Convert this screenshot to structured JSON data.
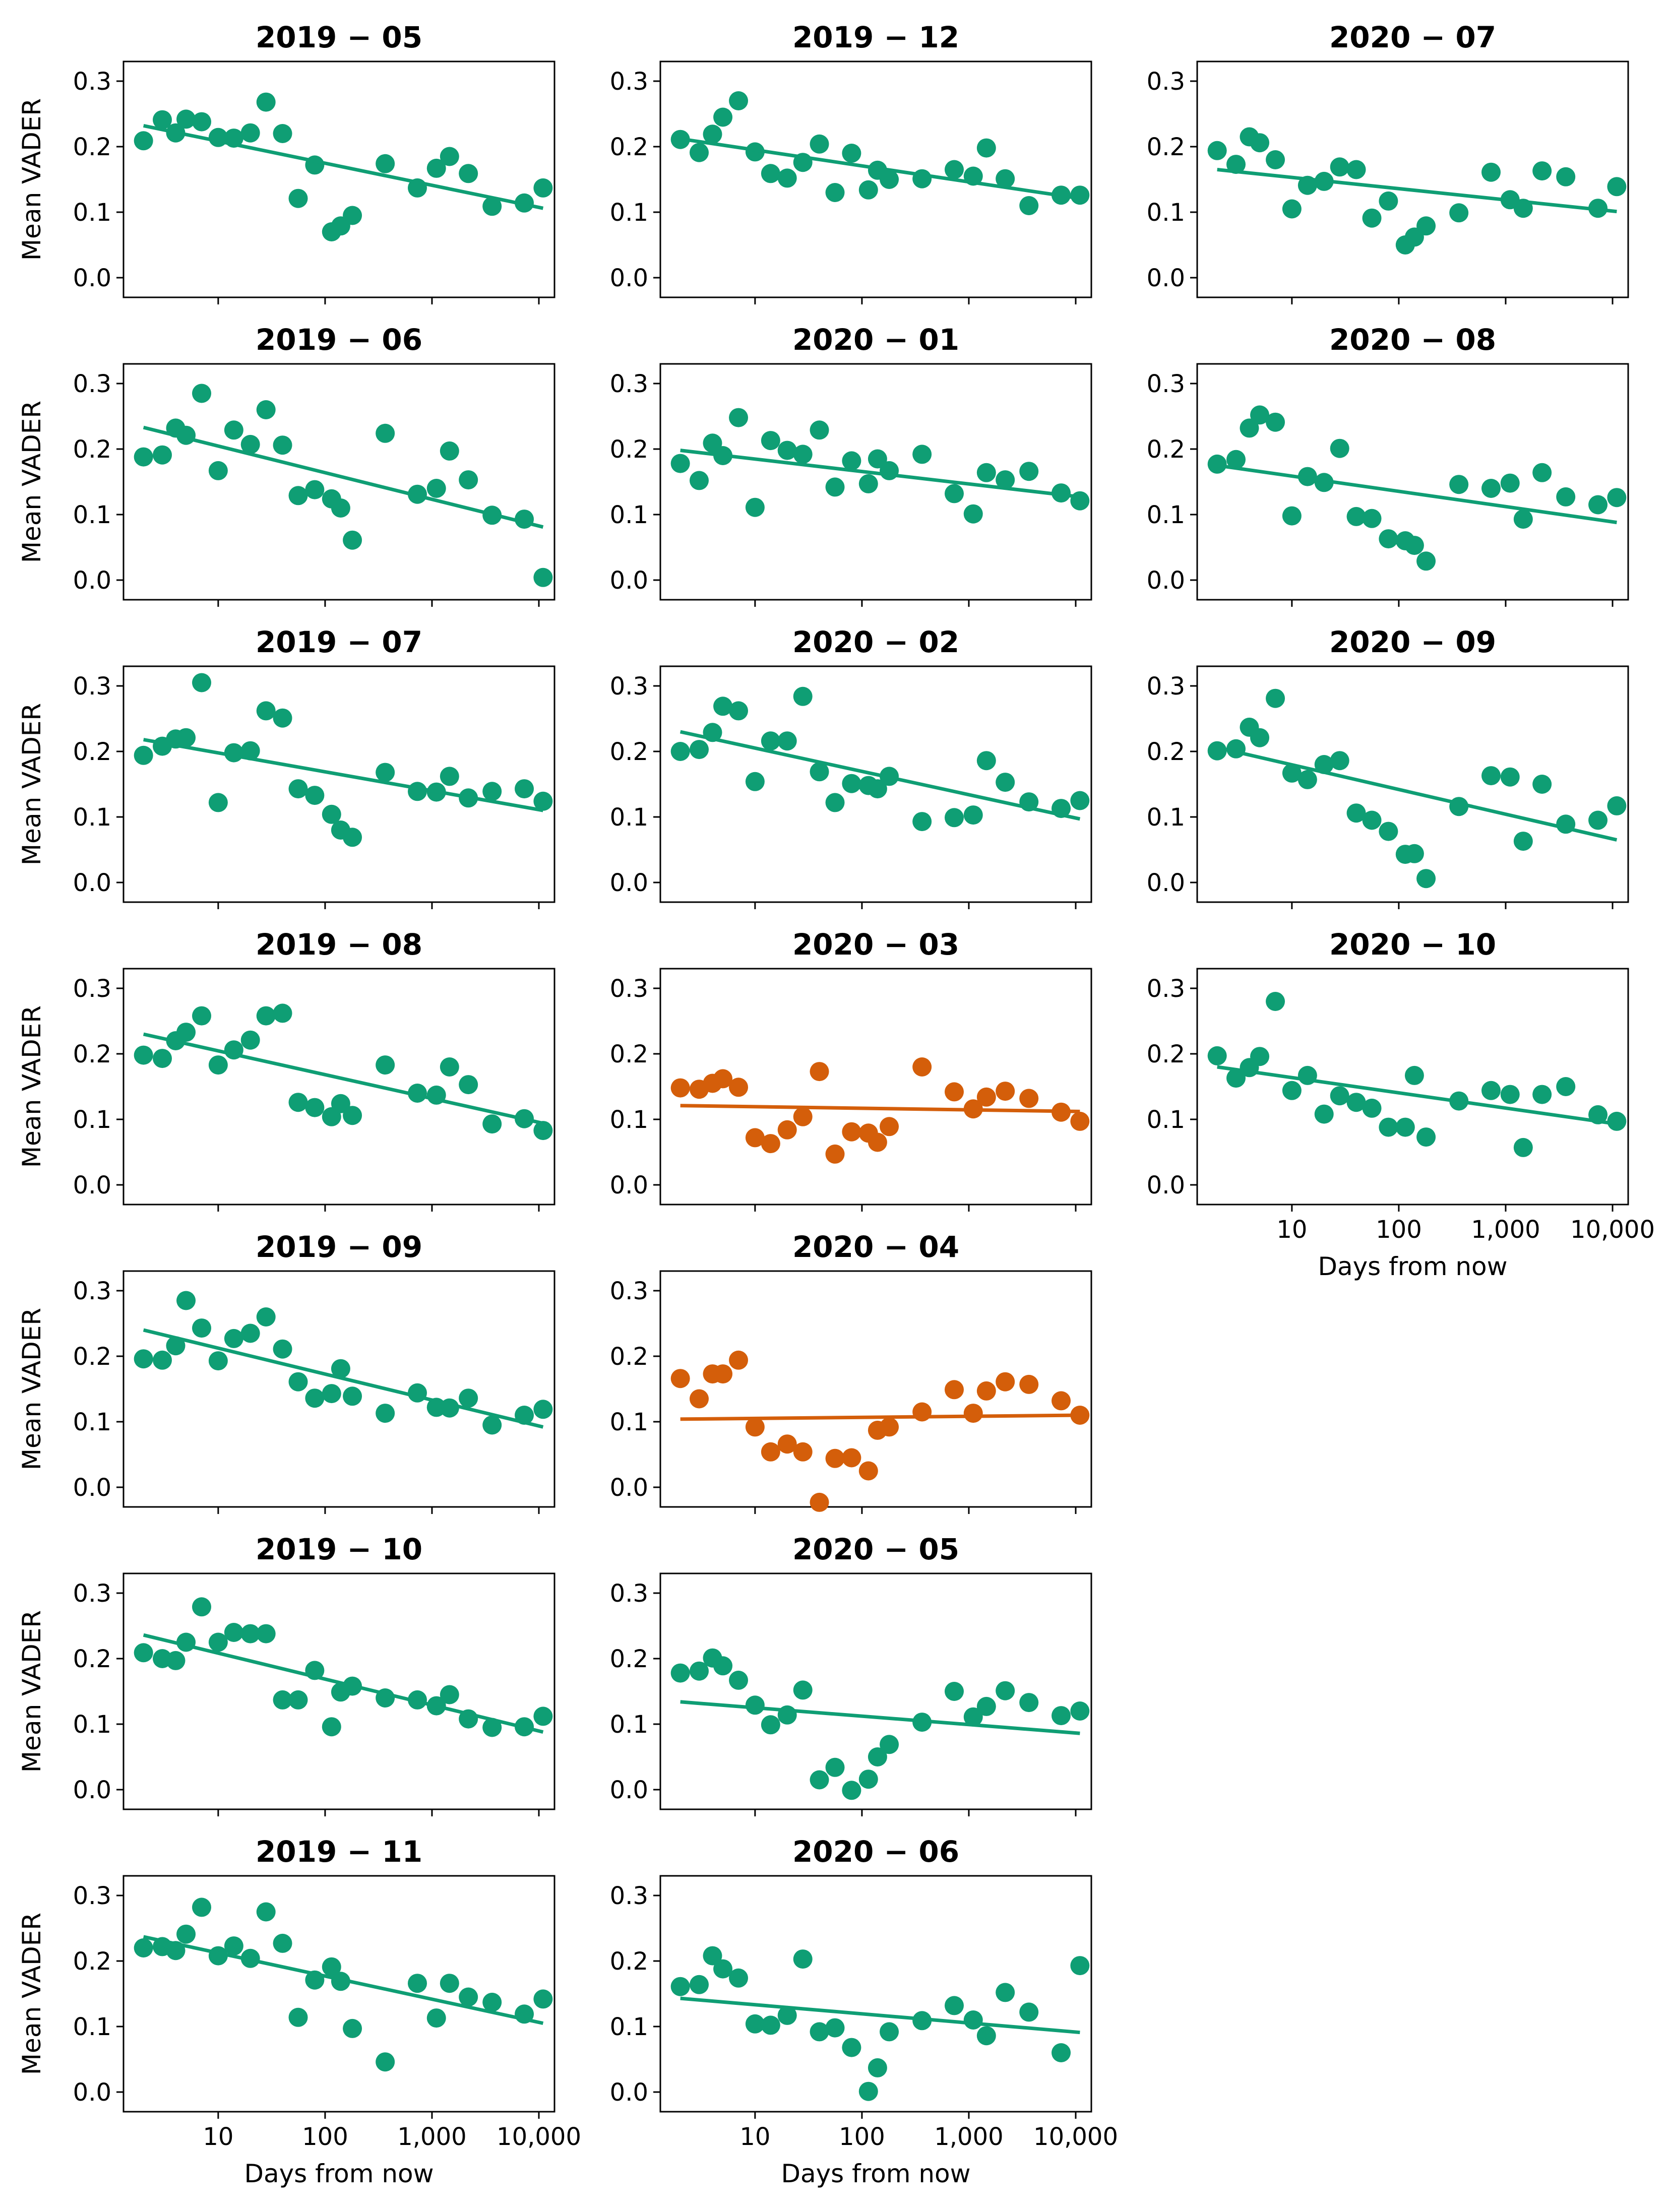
{
  "figure": {
    "ylabel": "Mean VADER",
    "xlabel": "Days from now",
    "yticks": [
      0.0,
      0.1,
      0.2,
      0.3
    ],
    "ytick_labels": [
      "0.0",
      "0.1",
      "0.2",
      "0.3"
    ],
    "xticks": [
      10,
      100,
      1000,
      10000
    ],
    "xtick_labels": [
      "10",
      "100",
      "1,000",
      "10,000"
    ],
    "colors": {
      "normal": "#0f9e74",
      "highlight": "#d45e0a"
    }
  },
  "chart_data": [
    {
      "type": "scatter",
      "title": "2019 − 05",
      "xscale": "log",
      "xlim": [
        1.3,
        14000
      ],
      "ylim": [
        -0.03,
        0.33
      ],
      "color": "#0f9e74",
      "x": [
        2,
        3,
        4,
        5,
        7,
        10,
        14,
        20,
        28,
        40,
        56,
        80,
        115,
        140,
        180,
        365,
        730,
        1100,
        1460,
        2190,
        3650,
        7300,
        10950
      ],
      "y": [
        0.209,
        0.241,
        0.221,
        0.242,
        0.238,
        0.214,
        0.213,
        0.221,
        0.268,
        0.22,
        0.121,
        0.172,
        0.07,
        0.079,
        0.095,
        0.174,
        0.137,
        0.167,
        0.185,
        0.159,
        0.109,
        0.114,
        0.137
      ],
      "fit": [
        [
          2,
          0.232
        ],
        [
          10950,
          0.106
        ]
      ]
    },
    {
      "type": "scatter",
      "title": "2019 − 06",
      "xscale": "log",
      "xlim": [
        1.3,
        14000
      ],
      "ylim": [
        -0.03,
        0.33
      ],
      "color": "#0f9e74",
      "x": [
        2,
        3,
        4,
        5,
        7,
        10,
        14,
        20,
        28,
        40,
        56,
        80,
        115,
        140,
        180,
        365,
        730,
        1100,
        1460,
        2190,
        3650,
        7300,
        10950
      ],
      "y": [
        0.188,
        0.191,
        0.232,
        0.221,
        0.285,
        0.167,
        0.229,
        0.207,
        0.26,
        0.206,
        0.129,
        0.138,
        0.124,
        0.11,
        0.061,
        0.224,
        0.131,
        0.14,
        0.197,
        0.153,
        0.099,
        0.093,
        0.004
      ],
      "fit": [
        [
          2,
          0.233
        ],
        [
          10950,
          0.081
        ]
      ]
    },
    {
      "type": "scatter",
      "title": "2019 − 07",
      "xscale": "log",
      "xlim": [
        1.3,
        14000
      ],
      "ylim": [
        -0.03,
        0.33
      ],
      "color": "#0f9e74",
      "x": [
        2,
        3,
        4,
        5,
        7,
        10,
        14,
        20,
        28,
        40,
        56,
        80,
        115,
        140,
        180,
        365,
        730,
        1100,
        1460,
        2190,
        3650,
        7300,
        10950
      ],
      "y": [
        0.194,
        0.208,
        0.219,
        0.221,
        0.305,
        0.122,
        0.198,
        0.201,
        0.262,
        0.251,
        0.143,
        0.133,
        0.104,
        0.08,
        0.069,
        0.168,
        0.139,
        0.138,
        0.162,
        0.129,
        0.139,
        0.143,
        0.124
      ],
      "fit": [
        [
          2,
          0.218
        ],
        [
          10950,
          0.11
        ]
      ]
    },
    {
      "type": "scatter",
      "title": "2019 − 08",
      "xscale": "log",
      "xlim": [
        1.3,
        14000
      ],
      "ylim": [
        -0.03,
        0.33
      ],
      "color": "#0f9e74",
      "x": [
        2,
        3,
        4,
        5,
        7,
        10,
        14,
        20,
        28,
        40,
        56,
        80,
        115,
        140,
        180,
        365,
        730,
        1100,
        1460,
        2190,
        3650,
        7300,
        10950
      ],
      "y": [
        0.198,
        0.193,
        0.22,
        0.233,
        0.258,
        0.183,
        0.206,
        0.221,
        0.258,
        0.262,
        0.126,
        0.118,
        0.104,
        0.124,
        0.106,
        0.183,
        0.14,
        0.137,
        0.18,
        0.153,
        0.093,
        0.101,
        0.083
      ],
      "fit": [
        [
          2,
          0.23
        ],
        [
          10950,
          0.094
        ]
      ]
    },
    {
      "type": "scatter",
      "title": "2019 − 09",
      "xscale": "log",
      "xlim": [
        1.3,
        14000
      ],
      "ylim": [
        -0.03,
        0.33
      ],
      "color": "#0f9e74",
      "x": [
        2,
        3,
        4,
        5,
        7,
        10,
        14,
        20,
        28,
        40,
        56,
        80,
        115,
        140,
        180,
        365,
        730,
        1100,
        1460,
        2190,
        3650,
        7300,
        10950
      ],
      "y": [
        0.196,
        0.194,
        0.216,
        0.285,
        0.243,
        0.193,
        0.227,
        0.235,
        0.26,
        0.211,
        0.161,
        0.136,
        0.143,
        0.181,
        0.139,
        0.113,
        0.144,
        0.122,
        0.121,
        0.136,
        0.095,
        0.11,
        0.119
      ],
      "fit": [
        [
          2,
          0.24
        ],
        [
          10950,
          0.092
        ]
      ]
    },
    {
      "type": "scatter",
      "title": "2019 − 10",
      "xscale": "log",
      "xlim": [
        1.3,
        14000
      ],
      "ylim": [
        -0.03,
        0.33
      ],
      "color": "#0f9e74",
      "x": [
        2,
        3,
        4,
        5,
        7,
        10,
        14,
        20,
        28,
        40,
        56,
        80,
        115,
        140,
        180,
        365,
        730,
        1100,
        1460,
        2190,
        3650,
        7300,
        10950
      ],
      "y": [
        0.209,
        0.2,
        0.197,
        0.225,
        0.279,
        0.225,
        0.24,
        0.238,
        0.238,
        0.137,
        0.137,
        0.182,
        0.096,
        0.149,
        0.158,
        0.14,
        0.137,
        0.128,
        0.145,
        0.108,
        0.095,
        0.096,
        0.112
      ],
      "fit": [
        [
          2,
          0.236
        ],
        [
          10950,
          0.088
        ]
      ]
    },
    {
      "type": "scatter",
      "title": "2019 − 11",
      "xscale": "log",
      "xlim": [
        1.3,
        14000
      ],
      "ylim": [
        -0.03,
        0.33
      ],
      "color": "#0f9e74",
      "x": [
        2,
        3,
        4,
        5,
        7,
        10,
        14,
        20,
        28,
        40,
        56,
        80,
        115,
        140,
        180,
        365,
        730,
        1100,
        1460,
        2190,
        3650,
        7300,
        10950
      ],
      "y": [
        0.22,
        0.222,
        0.216,
        0.241,
        0.282,
        0.208,
        0.223,
        0.204,
        0.275,
        0.227,
        0.114,
        0.171,
        0.191,
        0.169,
        0.097,
        0.046,
        0.166,
        0.113,
        0.166,
        0.145,
        0.137,
        0.119,
        0.142
      ],
      "fit": [
        [
          2,
          0.237
        ],
        [
          10950,
          0.105
        ]
      ]
    },
    {
      "type": "scatter",
      "title": "2019 − 12",
      "xscale": "log",
      "xlim": [
        1.3,
        14000
      ],
      "ylim": [
        -0.03,
        0.33
      ],
      "color": "#0f9e74",
      "x": [
        2,
        3,
        4,
        5,
        7,
        10,
        14,
        20,
        28,
        40,
        56,
        80,
        115,
        140,
        180,
        365,
        730,
        1100,
        1460,
        2190,
        3650,
        7300,
        10950
      ],
      "y": [
        0.211,
        0.191,
        0.219,
        0.245,
        0.27,
        0.192,
        0.159,
        0.152,
        0.176,
        0.204,
        0.13,
        0.19,
        0.134,
        0.164,
        0.15,
        0.151,
        0.165,
        0.155,
        0.198,
        0.151,
        0.11,
        0.126,
        0.126
      ],
      "fit": [
        [
          2,
          0.212
        ],
        [
          10950,
          0.121
        ]
      ]
    },
    {
      "type": "scatter",
      "title": "2020 − 01",
      "xscale": "log",
      "xlim": [
        1.3,
        14000
      ],
      "ylim": [
        -0.03,
        0.33
      ],
      "color": "#0f9e74",
      "x": [
        2,
        3,
        4,
        5,
        7,
        10,
        14,
        20,
        28,
        40,
        56,
        80,
        115,
        140,
        180,
        365,
        730,
        1100,
        1460,
        2190,
        3650,
        7300,
        10950
      ],
      "y": [
        0.178,
        0.152,
        0.209,
        0.19,
        0.248,
        0.111,
        0.213,
        0.198,
        0.192,
        0.229,
        0.142,
        0.182,
        0.147,
        0.185,
        0.167,
        0.192,
        0.132,
        0.101,
        0.164,
        0.153,
        0.166,
        0.133,
        0.121
      ],
      "fit": [
        [
          2,
          0.198
        ],
        [
          10950,
          0.127
        ]
      ]
    },
    {
      "type": "scatter",
      "title": "2020 − 02",
      "xscale": "log",
      "xlim": [
        1.3,
        14000
      ],
      "ylim": [
        -0.03,
        0.33
      ],
      "color": "#0f9e74",
      "x": [
        2,
        3,
        4,
        5,
        7,
        10,
        14,
        20,
        28,
        40,
        56,
        80,
        115,
        140,
        180,
        365,
        730,
        1100,
        1460,
        2190,
        3650,
        7300,
        10950
      ],
      "y": [
        0.2,
        0.203,
        0.229,
        0.269,
        0.262,
        0.154,
        0.216,
        0.216,
        0.284,
        0.169,
        0.122,
        0.151,
        0.148,
        0.143,
        0.162,
        0.093,
        0.099,
        0.103,
        0.186,
        0.153,
        0.123,
        0.113,
        0.125
      ],
      "fit": [
        [
          2,
          0.23
        ],
        [
          10950,
          0.097
        ]
      ]
    },
    {
      "type": "scatter",
      "title": "2020 − 03",
      "xscale": "log",
      "xlim": [
        1.3,
        14000
      ],
      "ylim": [
        -0.03,
        0.33
      ],
      "color": "#d45e0a",
      "x": [
        2,
        3,
        4,
        5,
        7,
        10,
        14,
        20,
        28,
        40,
        56,
        80,
        115,
        140,
        180,
        365,
        730,
        1100,
        1460,
        2190,
        3650,
        7300,
        10950
      ],
      "y": [
        0.148,
        0.146,
        0.155,
        0.162,
        0.149,
        0.072,
        0.063,
        0.084,
        0.104,
        0.173,
        0.047,
        0.081,
        0.079,
        0.065,
        0.089,
        0.18,
        0.142,
        0.116,
        0.134,
        0.143,
        0.132,
        0.111,
        0.097
      ],
      "fit": [
        [
          2,
          0.121
        ],
        [
          10950,
          0.112
        ]
      ]
    },
    {
      "type": "scatter",
      "title": "2020 − 04",
      "xscale": "log",
      "xlim": [
        1.3,
        14000
      ],
      "ylim": [
        -0.03,
        0.33
      ],
      "color": "#d45e0a",
      "x": [
        2,
        3,
        4,
        5,
        7,
        10,
        14,
        20,
        28,
        40,
        56,
        80,
        115,
        140,
        180,
        365,
        730,
        1100,
        1460,
        2190,
        3650,
        7300,
        10950
      ],
      "y": [
        0.166,
        0.135,
        0.173,
        0.173,
        0.194,
        0.092,
        0.054,
        0.066,
        0.054,
        -0.023,
        0.044,
        0.045,
        0.025,
        0.087,
        0.092,
        0.115,
        0.149,
        0.113,
        0.147,
        0.161,
        0.157,
        0.132,
        0.11
      ],
      "fit": [
        [
          2,
          0.104
        ],
        [
          10950,
          0.11
        ]
      ]
    },
    {
      "type": "scatter",
      "title": "2020 − 05",
      "xscale": "log",
      "xlim": [
        1.3,
        14000
      ],
      "ylim": [
        -0.03,
        0.33
      ],
      "color": "#0f9e74",
      "x": [
        2,
        3,
        4,
        5,
        7,
        10,
        14,
        20,
        28,
        40,
        56,
        80,
        115,
        140,
        180,
        365,
        730,
        1100,
        1460,
        2190,
        3650,
        7300,
        10950
      ],
      "y": [
        0.178,
        0.181,
        0.201,
        0.189,
        0.167,
        0.129,
        0.099,
        0.114,
        0.152,
        0.015,
        0.034,
        -0.001,
        0.016,
        0.05,
        0.069,
        0.103,
        0.15,
        0.111,
        0.127,
        0.151,
        0.133,
        0.113,
        0.12
      ],
      "fit": [
        [
          2,
          0.134
        ],
        [
          10950,
          0.086
        ]
      ]
    },
    {
      "type": "scatter",
      "title": "2020 − 06",
      "xscale": "log",
      "xlim": [
        1.3,
        14000
      ],
      "ylim": [
        -0.03,
        0.33
      ],
      "color": "#0f9e74",
      "x": [
        2,
        3,
        4,
        5,
        7,
        10,
        14,
        20,
        28,
        40,
        56,
        80,
        115,
        140,
        180,
        365,
        730,
        1100,
        1460,
        2190,
        3650,
        7300,
        10950
      ],
      "y": [
        0.161,
        0.164,
        0.208,
        0.188,
        0.174,
        0.104,
        0.102,
        0.117,
        0.203,
        0.092,
        0.098,
        0.068,
        0.001,
        0.037,
        0.092,
        0.109,
        0.132,
        0.11,
        0.086,
        0.152,
        0.122,
        0.06,
        0.193
      ],
      "fit": [
        [
          2,
          0.143
        ],
        [
          10950,
          0.091
        ]
      ]
    },
    {
      "type": "scatter",
      "title": "2020 − 07",
      "xscale": "log",
      "xlim": [
        1.3,
        14000
      ],
      "ylim": [
        -0.03,
        0.33
      ],
      "color": "#0f9e74",
      "x": [
        2,
        3,
        4,
        5,
        7,
        10,
        14,
        20,
        28,
        40,
        56,
        80,
        115,
        140,
        180,
        365,
        730,
        1100,
        1460,
        2190,
        3650,
        7300,
        10950
      ],
      "y": [
        0.194,
        0.173,
        0.215,
        0.206,
        0.18,
        0.105,
        0.141,
        0.147,
        0.169,
        0.165,
        0.091,
        0.117,
        0.05,
        0.062,
        0.079,
        0.099,
        0.161,
        0.119,
        0.106,
        0.163,
        0.154,
        0.106,
        0.139
      ],
      "fit": [
        [
          2,
          0.165
        ],
        [
          10950,
          0.101
        ]
      ]
    },
    {
      "type": "scatter",
      "title": "2020 − 08",
      "xscale": "log",
      "xlim": [
        1.3,
        14000
      ],
      "ylim": [
        -0.03,
        0.33
      ],
      "color": "#0f9e74",
      "x": [
        2,
        3,
        4,
        5,
        7,
        10,
        14,
        20,
        28,
        40,
        56,
        80,
        115,
        140,
        180,
        365,
        730,
        1100,
        1460,
        2190,
        3650,
        7300,
        10950
      ],
      "y": [
        0.177,
        0.184,
        0.232,
        0.252,
        0.241,
        0.098,
        0.158,
        0.149,
        0.201,
        0.097,
        0.094,
        0.063,
        0.06,
        0.053,
        0.029,
        0.146,
        0.14,
        0.148,
        0.093,
        0.164,
        0.127,
        0.115,
        0.126
      ],
      "fit": [
        [
          2,
          0.175
        ],
        [
          10950,
          0.088
        ]
      ]
    },
    {
      "type": "scatter",
      "title": "2020 − 09",
      "xscale": "log",
      "xlim": [
        1.3,
        14000
      ],
      "ylim": [
        -0.03,
        0.33
      ],
      "color": "#0f9e74",
      "x": [
        2,
        3,
        4,
        5,
        7,
        10,
        14,
        20,
        28,
        40,
        56,
        80,
        115,
        140,
        180,
        365,
        730,
        1100,
        1460,
        2190,
        3650,
        7300,
        10950
      ],
      "y": [
        0.201,
        0.204,
        0.237,
        0.221,
        0.281,
        0.167,
        0.157,
        0.18,
        0.186,
        0.106,
        0.095,
        0.078,
        0.043,
        0.044,
        0.006,
        0.116,
        0.163,
        0.161,
        0.063,
        0.15,
        0.089,
        0.095,
        0.117
      ],
      "fit": [
        [
          2,
          0.206
        ],
        [
          10950,
          0.065
        ]
      ]
    },
    {
      "type": "scatter",
      "title": "2020 − 10",
      "xscale": "log",
      "xlim": [
        1.3,
        14000
      ],
      "ylim": [
        -0.03,
        0.33
      ],
      "color": "#0f9e74",
      "x": [
        2,
        3,
        4,
        5,
        7,
        10,
        14,
        20,
        28,
        40,
        56,
        80,
        115,
        140,
        180,
        365,
        730,
        1100,
        1460,
        2190,
        3650,
        7300,
        10950
      ],
      "y": [
        0.197,
        0.163,
        0.179,
        0.196,
        0.28,
        0.144,
        0.167,
        0.108,
        0.136,
        0.126,
        0.117,
        0.088,
        0.088,
        0.167,
        0.073,
        0.128,
        0.144,
        0.138,
        0.057,
        0.138,
        0.15,
        0.107,
        0.097
      ],
      "fit": [
        [
          2,
          0.18
        ],
        [
          10950,
          0.093
        ]
      ]
    }
  ]
}
